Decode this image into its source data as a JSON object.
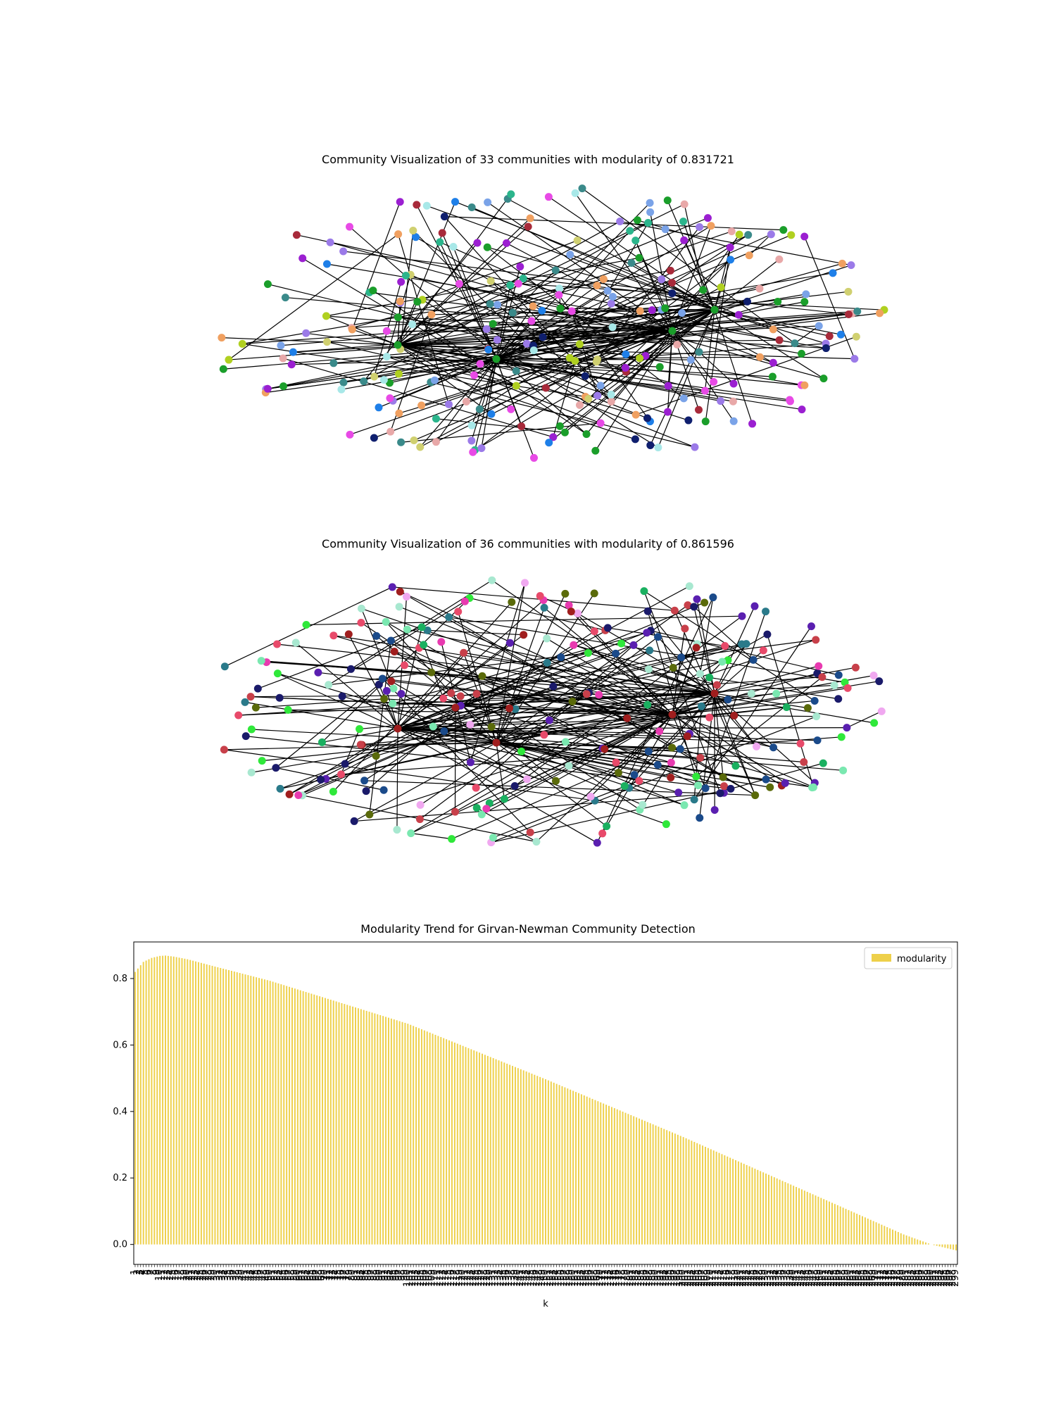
{
  "graph1": {
    "title": "Community Visualization of 33 communities with modularity of 0.831721",
    "node_colors": [
      "#1a9e2a",
      "#2bb58c",
      "#0f1f6e",
      "#9b1fd1",
      "#e84ae6",
      "#a8e8e8",
      "#7aa3e8",
      "#9b7ae8",
      "#1e7fe8",
      "#a82a3a",
      "#3a8a8a",
      "#f0a060",
      "#d0d070",
      "#b0d020",
      "#e8a8a8"
    ]
  },
  "graph2": {
    "title": "Community Visualization of 36 communities with modularity of 0.861596",
    "node_colors": [
      "#a01e1e",
      "#5a1fb0",
      "#2fe83a",
      "#e84a6a",
      "#1a4a8a",
      "#e83ab0",
      "#7ae8b0",
      "#c8404a",
      "#a8e8d0",
      "#5a6a0a",
      "#2a7a8a",
      "#f0a8f0",
      "#1a1a6a",
      "#1ab060"
    ]
  },
  "bar_chart": {
    "title": "Modularity Trend for Girvan-Newman Community Detection",
    "xlabel": "k",
    "ylabel": "",
    "legend_label": "modularity",
    "bar_color": "#eed04a"
  },
  "chart_data": {
    "type": "bar",
    "title": "Modularity Trend for Girvan-Newman Community Detection",
    "xlabel": "k",
    "ylabel": "",
    "x_range": [
      1,
      299
    ],
    "ylim": [
      -0.06,
      0.91
    ],
    "yticks": [
      0.0,
      0.2,
      0.4,
      0.6,
      0.8
    ],
    "ytick_labels": [
      "0.0",
      "0.2",
      "0.4",
      "0.6",
      "0.8"
    ],
    "legend": [
      "modularity"
    ],
    "legend_position": "top-right",
    "series": [
      {
        "name": "modularity",
        "key_points": [
          {
            "k": 1,
            "value": 0.82
          },
          {
            "k": 4,
            "value": 0.85
          },
          {
            "k": 7,
            "value": 0.862
          },
          {
            "k": 10,
            "value": 0.868
          },
          {
            "k": 12,
            "value": 0.869
          },
          {
            "k": 15,
            "value": 0.866
          },
          {
            "k": 20,
            "value": 0.858
          },
          {
            "k": 30,
            "value": 0.836
          },
          {
            "k": 50,
            "value": 0.793
          },
          {
            "k": 100,
            "value": 0.664
          },
          {
            "k": 150,
            "value": 0.497
          },
          {
            "k": 200,
            "value": 0.323
          },
          {
            "k": 250,
            "value": 0.14
          },
          {
            "k": 280,
            "value": 0.03
          },
          {
            "k": 290,
            "value": 0.0
          },
          {
            "k": 299,
            "value": -0.018
          }
        ]
      }
    ]
  }
}
